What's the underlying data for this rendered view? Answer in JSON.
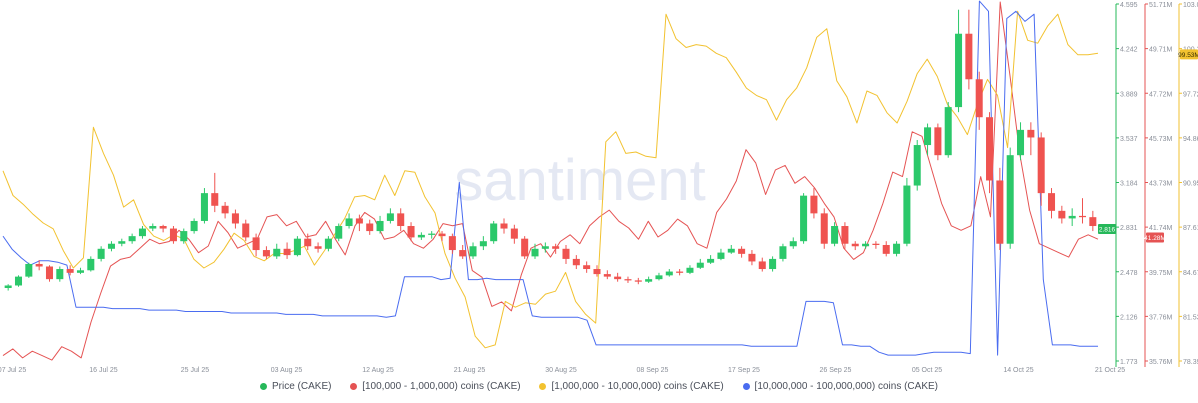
{
  "watermark": "santiment",
  "legend": [
    {
      "label": "Price (CAKE)",
      "color": "#26b85a"
    },
    {
      "label": "[100,000  - 1,000,000) coins (CAKE)",
      "color": "#e55353"
    },
    {
      "label": "[1,000,000 - 10,000,000) coins (CAKE)",
      "color": "#f2c230"
    },
    {
      "label": "[10,000,000 - 100,000,000) coins (CAKE)",
      "color": "#4a6cf0"
    }
  ],
  "chart_data": {
    "type": "line",
    "x_ticks": [
      "07 Jul 25",
      "16 Jul 25",
      "25 Jul 25",
      "03 Aug 25",
      "12 Aug 25",
      "21 Aug 25",
      "30 Aug 25",
      "08 Sep 25",
      "17 Sep 25",
      "26 Sep 25",
      "05 Oct 25",
      "14 Oct 25",
      "21 Oct 25"
    ],
    "price_axis": {
      "ticks": [
        "4.595",
        "4.242",
        "3.889",
        "3.537",
        "3.184",
        "2.831",
        "2.478",
        "2.126",
        "1.773"
      ],
      "range": [
        1.773,
        4.595
      ],
      "current_label": "2.816",
      "current_value": 2.816,
      "color": "#26b85a"
    },
    "red_axis": {
      "ticks": [
        "51.71M",
        "49.71M",
        "47.72M",
        "45.73M",
        "43.73M",
        "41.74M",
        "39.75M",
        "37.76M",
        "35.76M"
      ],
      "range": [
        35.76,
        51.71
      ],
      "current_label": "41.28M",
      "current_value": 41.28,
      "color": "#e55353"
    },
    "yellow_axis": {
      "ticks": [
        "103.0",
        "100.36",
        "97.72",
        "94.86",
        "90.95",
        "87.61",
        "84.675",
        "81.53",
        "78.39"
      ],
      "range": [
        78.39,
        103.0
      ],
      "current_label": "99.53M",
      "current_value": 99.53,
      "color": "#f2c230"
    },
    "candles": [
      [
        2.35,
        2.37,
        2.33,
        2.38
      ],
      [
        2.37,
        2.44,
        2.36,
        2.45
      ],
      [
        2.44,
        2.54,
        2.43,
        2.55
      ],
      [
        2.54,
        2.52,
        2.49,
        2.57
      ],
      [
        2.52,
        2.42,
        2.4,
        2.53
      ],
      [
        2.42,
        2.5,
        2.4,
        2.52
      ],
      [
        2.5,
        2.47,
        2.45,
        2.53
      ],
      [
        2.47,
        2.49,
        2.46,
        2.51
      ],
      [
        2.49,
        2.58,
        2.48,
        2.6
      ],
      [
        2.58,
        2.66,
        2.56,
        2.68
      ],
      [
        2.66,
        2.7,
        2.64,
        2.72
      ],
      [
        2.7,
        2.72,
        2.68,
        2.74
      ],
      [
        2.72,
        2.76,
        2.7,
        2.78
      ],
      [
        2.76,
        2.82,
        2.74,
        2.84
      ],
      [
        2.82,
        2.84,
        2.8,
        2.86
      ],
      [
        2.84,
        2.82,
        2.79,
        2.85
      ],
      [
        2.82,
        2.72,
        2.7,
        2.84
      ],
      [
        2.72,
        2.8,
        2.7,
        2.82
      ],
      [
        2.8,
        2.88,
        2.78,
        2.9
      ],
      [
        2.88,
        3.1,
        2.86,
        3.14
      ],
      [
        3.1,
        3.0,
        2.95,
        3.26
      ],
      [
        3.0,
        2.94,
        2.9,
        3.03
      ],
      [
        2.94,
        2.86,
        2.82,
        2.97
      ],
      [
        2.86,
        2.75,
        2.72,
        2.89
      ],
      [
        2.75,
        2.65,
        2.6,
        2.78
      ],
      [
        2.65,
        2.6,
        2.58,
        2.68
      ],
      [
        2.6,
        2.66,
        2.58,
        2.7
      ],
      [
        2.66,
        2.61,
        2.58,
        2.71
      ],
      [
        2.61,
        2.74,
        2.6,
        2.76
      ],
      [
        2.74,
        2.68,
        2.65,
        2.78
      ],
      [
        2.68,
        2.66,
        2.63,
        2.71
      ],
      [
        2.66,
        2.74,
        2.64,
        2.76
      ],
      [
        2.74,
        2.84,
        2.72,
        2.86
      ],
      [
        2.84,
        2.9,
        2.82,
        2.94
      ],
      [
        2.9,
        2.86,
        2.8,
        2.93
      ],
      [
        2.86,
        2.8,
        2.77,
        2.89
      ],
      [
        2.8,
        2.88,
        2.78,
        2.92
      ],
      [
        2.88,
        2.94,
        2.86,
        2.98
      ],
      [
        2.94,
        2.84,
        2.8,
        2.98
      ],
      [
        2.84,
        2.75,
        2.72,
        2.87
      ],
      [
        2.75,
        2.77,
        2.73,
        2.79
      ],
      [
        2.77,
        2.78,
        2.74,
        2.8
      ],
      [
        2.78,
        2.76,
        2.72,
        2.8
      ],
      [
        2.76,
        2.65,
        2.62,
        2.78
      ],
      [
        2.65,
        2.6,
        2.58,
        2.69
      ],
      [
        2.6,
        2.68,
        2.58,
        2.71
      ],
      [
        2.68,
        2.72,
        2.65,
        2.76
      ],
      [
        2.72,
        2.86,
        2.7,
        2.88
      ],
      [
        2.86,
        2.82,
        2.78,
        2.9
      ],
      [
        2.82,
        2.74,
        2.7,
        2.85
      ],
      [
        2.74,
        2.6,
        2.58,
        2.76
      ],
      [
        2.6,
        2.66,
        2.58,
        2.7
      ],
      [
        2.66,
        2.68,
        2.63,
        2.71
      ],
      [
        2.68,
        2.66,
        2.62,
        2.7
      ],
      [
        2.66,
        2.58,
        2.54,
        2.69
      ],
      [
        2.58,
        2.53,
        2.5,
        2.61
      ],
      [
        2.53,
        2.5,
        2.47,
        2.56
      ],
      [
        2.5,
        2.46,
        2.44,
        2.53
      ],
      [
        2.46,
        2.44,
        2.42,
        2.49
      ],
      [
        2.44,
        2.42,
        2.4,
        2.47
      ],
      [
        2.42,
        2.41,
        2.39,
        2.44
      ],
      [
        2.41,
        2.4,
        2.38,
        2.43
      ],
      [
        2.4,
        2.42,
        2.39,
        2.44
      ],
      [
        2.42,
        2.45,
        2.41,
        2.47
      ],
      [
        2.45,
        2.48,
        2.44,
        2.5
      ],
      [
        2.48,
        2.47,
        2.45,
        2.5
      ],
      [
        2.47,
        2.51,
        2.46,
        2.53
      ],
      [
        2.51,
        2.55,
        2.5,
        2.58
      ],
      [
        2.55,
        2.58,
        2.54,
        2.61
      ],
      [
        2.58,
        2.63,
        2.57,
        2.66
      ],
      [
        2.63,
        2.66,
        2.62,
        2.69
      ],
      [
        2.66,
        2.62,
        2.59,
        2.68
      ],
      [
        2.62,
        2.56,
        2.53,
        2.65
      ],
      [
        2.56,
        2.5,
        2.48,
        2.59
      ],
      [
        2.5,
        2.58,
        2.48,
        2.6
      ],
      [
        2.58,
        2.68,
        2.56,
        2.7
      ],
      [
        2.68,
        2.72,
        2.66,
        2.75
      ],
      [
        2.72,
        3.08,
        2.7,
        3.1
      ],
      [
        3.08,
        2.94,
        2.9,
        3.14
      ],
      [
        2.94,
        2.7,
        2.66,
        2.98
      ],
      [
        2.7,
        2.84,
        2.68,
        2.87
      ],
      [
        2.84,
        2.7,
        2.66,
        2.87
      ],
      [
        2.7,
        2.68,
        2.65,
        2.72
      ],
      [
        2.68,
        2.7,
        2.66,
        2.72
      ],
      [
        2.7,
        2.69,
        2.66,
        2.72
      ],
      [
        2.69,
        2.62,
        2.6,
        2.72
      ],
      [
        2.62,
        2.7,
        2.6,
        2.72
      ],
      [
        2.7,
        3.16,
        2.68,
        3.22
      ],
      [
        3.16,
        3.48,
        3.12,
        3.52
      ],
      [
        3.48,
        3.62,
        3.4,
        3.65
      ],
      [
        3.62,
        3.4,
        3.36,
        3.65
      ],
      [
        3.4,
        3.78,
        3.38,
        3.82
      ],
      [
        3.78,
        4.36,
        3.74,
        4.55
      ],
      [
        4.36,
        4.0,
        3.92,
        4.55
      ],
      [
        4.0,
        3.7,
        3.6,
        4.06
      ],
      [
        3.7,
        3.2,
        3.1,
        3.74
      ],
      [
        3.2,
        2.7,
        2.65,
        3.3
      ],
      [
        2.7,
        3.4,
        2.66,
        3.46
      ],
      [
        3.4,
        3.6,
        3.36,
        3.66
      ],
      [
        3.6,
        3.54,
        3.4,
        3.66
      ],
      [
        3.54,
        3.1,
        3.0,
        3.58
      ],
      [
        3.1,
        2.96,
        2.9,
        3.14
      ],
      [
        2.96,
        2.9,
        2.86,
        3.0
      ],
      [
        2.9,
        2.92,
        2.84,
        2.98
      ],
      [
        2.92,
        2.91,
        2.86,
        3.06
      ],
      [
        2.91,
        2.84,
        2.8,
        2.96
      ]
    ],
    "series": [
      {
        "name": "[100,000  - 1,000,000) coins (CAKE)",
        "axis": "red",
        "color": "#e55353",
        "values": [
          36.0,
          36.3,
          35.9,
          36.2,
          36.0,
          35.8,
          36.4,
          36.2,
          35.9,
          37.5,
          38.8,
          40.0,
          40.3,
          40.4,
          40.8,
          41.2,
          41.0,
          41.1,
          41.6,
          41.2,
          40.6,
          40.9,
          42.0,
          41.5,
          40.8,
          41.0,
          41.2,
          42.2,
          42.3,
          41.8,
          42.0,
          41.3,
          41.4,
          42.0,
          41.2,
          40.5,
          41.8,
          42.4,
          42.1,
          41.2,
          41.3,
          41.6,
          41.0,
          40.8,
          41.2,
          41.9,
          41.8,
          41.9,
          39.8,
          39.5,
          38.2,
          38.4,
          38.0,
          39.6,
          40.8,
          41.0,
          40.4,
          41.1,
          41.4,
          41.0,
          41.8,
          42.2,
          42.5,
          42.0,
          41.7,
          41.2,
          42.0,
          41.3,
          41.6,
          42.1,
          41.8,
          41.0,
          40.8,
          42.4,
          43.0,
          43.8,
          45.2,
          44.6,
          43.2,
          44.3,
          44.5,
          43.7,
          44.0,
          43.5,
          42.8,
          42.2,
          40.8,
          40.3,
          40.6,
          41.6,
          42.8,
          44.2,
          44.0,
          46.0,
          45.8,
          44.3,
          42.8,
          41.8,
          41.6,
          41.8,
          44.0,
          42.2,
          51.8,
          48.5,
          45.0,
          42.5,
          41.0,
          40.8,
          40.6,
          40.4,
          41.2,
          41.4,
          41.2
        ]
      },
      {
        "name": "[1,000,000 - 10,000,000) coins (CAKE)",
        "axis": "yellow",
        "color": "#f2c230",
        "values": [
          91.5,
          89.8,
          89.2,
          88.5,
          87.9,
          87.5,
          86.0,
          84.8,
          85.5,
          94.5,
          92.7,
          91.2,
          89.0,
          89.5,
          87.8,
          87.0,
          86.7,
          87.1,
          86.8,
          85.4,
          84.8,
          85.2,
          86.1,
          87.2,
          86.7,
          85.6,
          85.3,
          85.8,
          85.8,
          86.0,
          86.3,
          85.0,
          86.0,
          87.1,
          88.2,
          89.7,
          89.8,
          89.5,
          91.2,
          89.8,
          91.5,
          91.4,
          89.7,
          88.6,
          85.8,
          84.1,
          82.8,
          80.1,
          79.3,
          79.5,
          82.5,
          82.1,
          82.4,
          82.3,
          83.0,
          83.2,
          84.5,
          82.5,
          81.6,
          81.0,
          93.5,
          94.2,
          92.7,
          92.8,
          92.5,
          92.4,
          102.3,
          100.6,
          100.0,
          100.2,
          100.1,
          99.6,
          99.3,
          98.3,
          97.2,
          96.7,
          96.4,
          95.0,
          96.4,
          97.2,
          98.6,
          100.7,
          101.3,
          97.7,
          96.6,
          94.8,
          97.0,
          96.7,
          95.5,
          94.8,
          96.3,
          98.2,
          99.2,
          98.0,
          96.1,
          95.2,
          94.0,
          96.1,
          97.8,
          96.7,
          93.1,
          102.5,
          100.5,
          100.3,
          101.5,
          102.3,
          100.2,
          99.5,
          99.5,
          99.6
        ]
      },
      {
        "name": "[10,000,000 - 100,000,000) coins (CAKE)",
        "axis": "yellow",
        "color": "#4a6cf0",
        "values": [
          87.0,
          86.1,
          85.5,
          85.0,
          85.3,
          85.3,
          85.2,
          85.0,
          82.1,
          82.1,
          82.1,
          82.1,
          82.0,
          82.0,
          82.0,
          82.0,
          81.9,
          81.9,
          81.9,
          81.9,
          81.8,
          81.8,
          81.8,
          81.8,
          81.8,
          81.7,
          81.7,
          81.7,
          81.7,
          81.7,
          81.7,
          81.6,
          81.6,
          81.6,
          81.6,
          81.5,
          81.5,
          81.5,
          81.5,
          81.5,
          81.5,
          81.5,
          81.4,
          81.5,
          84.2,
          84.2,
          84.2,
          84.2,
          84.0,
          84.1,
          90.7,
          84.0,
          84.0,
          84.1,
          84.0,
          84.0,
          84.0,
          84.0,
          81.5,
          81.4,
          81.4,
          81.4,
          81.4,
          81.4,
          81.2,
          79.5,
          79.5,
          79.5,
          79.5,
          79.5,
          79.5,
          79.5,
          79.5,
          79.5,
          79.5,
          79.5,
          79.5,
          79.5,
          79.5,
          79.5,
          79.5,
          79.5,
          79.4,
          79.4,
          79.4,
          79.4,
          79.4,
          79.4,
          82.5,
          82.5,
          82.5,
          82.4,
          79.5,
          79.5,
          79.4,
          79.4,
          79.0,
          78.8,
          78.8,
          78.8,
          78.8,
          78.9,
          79.0,
          79.0,
          79.0,
          79.0,
          78.9,
          103.2,
          102.5,
          78.8,
          102.0,
          102.5,
          101.8,
          102.3,
          84.0,
          79.5,
          79.5,
          79.5,
          79.4,
          79.4,
          79.4
        ]
      }
    ]
  }
}
